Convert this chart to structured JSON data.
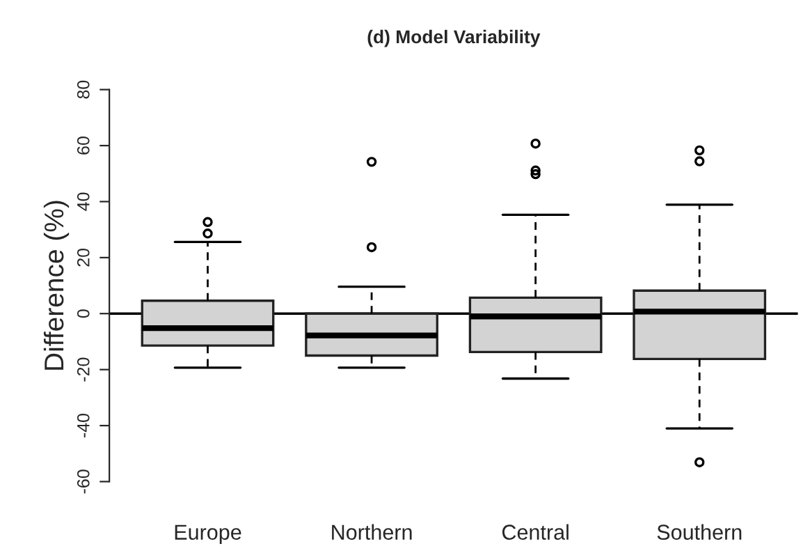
{
  "chart_data": {
    "type": "box",
    "title": "(d) Model Variability",
    "ylabel": "Difference (%)",
    "categories": [
      "Europe",
      "Northern",
      "Central",
      "Southern"
    ],
    "boxes": [
      {
        "low": -19.3,
        "q1": -11.4,
        "median": -5.2,
        "q3": 4.6,
        "high": 25.6,
        "outliers": [
          28.6,
          32.7
        ]
      },
      {
        "low": -19.3,
        "q1": -15,
        "median": -7.8,
        "q3": 0,
        "high": 9.6,
        "outliers": [
          23.7,
          54.2
        ]
      },
      {
        "low": -23.2,
        "q1": -13.7,
        "median": -1,
        "q3": 5.7,
        "high": 35.3,
        "outliers": [
          49.8,
          51.1,
          60.7
        ]
      },
      {
        "low": -41,
        "q1": -16.2,
        "median": 0.7,
        "q3": 8.2,
        "high": 38.9,
        "outliers": [
          -53.1,
          54.4,
          58.3
        ]
      }
    ],
    "color": "#d3d3d3",
    "ylim": [
      -60,
      80
    ],
    "yticks": [
      -60,
      -40,
      -20,
      0,
      20,
      40,
      60,
      80
    ],
    "ref_lines": [
      {
        "axis": "y",
        "value": 0,
        "color": "#000000"
      }
    ],
    "grid": false
  }
}
